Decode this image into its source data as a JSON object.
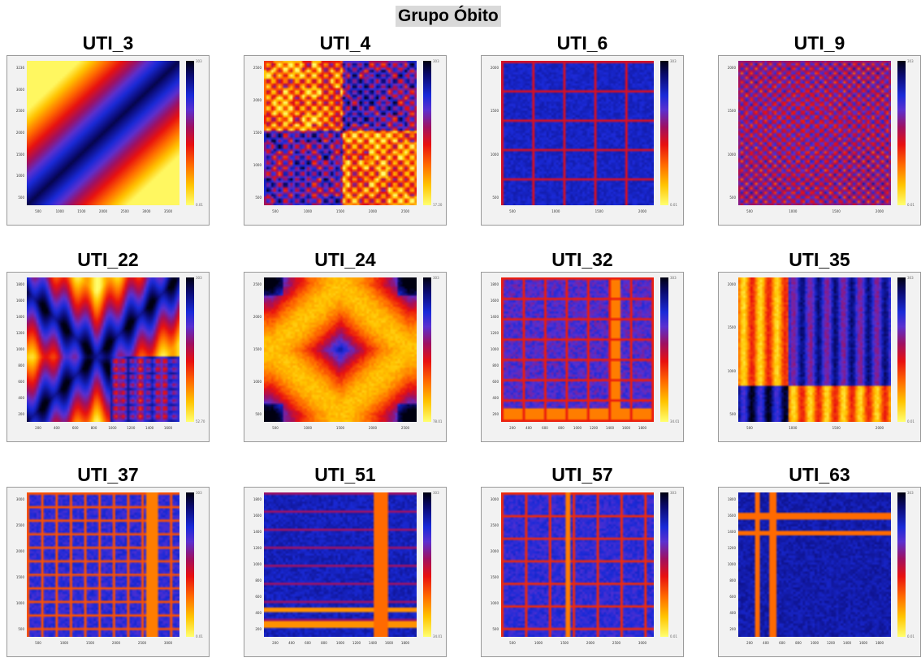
{
  "header": {
    "title": "Grupo Óbito"
  },
  "colors": {
    "low": "#ffff70",
    "mid": "#e81010",
    "high": "#1a2ad8",
    "max": "#000010"
  },
  "chart_data": [
    {
      "type": "heatmap",
      "title": "UTI_3",
      "colorbar": {
        "max": "303",
        "min": "0.01"
      },
      "yticks": [
        "3236",
        "3000",
        "2500",
        "2000",
        "1500",
        "1000",
        "500"
      ],
      "xticks": [
        "500",
        "1000",
        "1500",
        "2000",
        "2500",
        "3000",
        "3500"
      ]
    },
    {
      "type": "heatmap",
      "title": "UTI_4",
      "colorbar": {
        "max": "303",
        "min": "17.20"
      },
      "yticks": [
        "2500",
        "2000",
        "1500",
        "1000",
        "500"
      ],
      "xticks": [
        "500",
        "1000",
        "1500",
        "2000",
        "2500"
      ]
    },
    {
      "type": "heatmap",
      "title": "UTI_6",
      "colorbar": {
        "max": "303",
        "min": "0.01"
      },
      "yticks": [
        "2000",
        "1500",
        "1000",
        "500"
      ],
      "xticks": [
        "500",
        "1000",
        "1500",
        "2000"
      ]
    },
    {
      "type": "heatmap",
      "title": "UTI_9",
      "colorbar": {
        "max": "303",
        "min": "0.01"
      },
      "yticks": [
        "2000",
        "1500",
        "1000",
        "500"
      ],
      "xticks": [
        "500",
        "1000",
        "1500",
        "2000"
      ]
    },
    {
      "type": "heatmap",
      "title": "UTI_22",
      "colorbar": {
        "max": "303",
        "min": "52.70"
      },
      "yticks": [
        "1800",
        "1600",
        "1400",
        "1200",
        "1000",
        "800",
        "600",
        "400",
        "200"
      ],
      "xticks": [
        "200",
        "400",
        "600",
        "800",
        "1000",
        "1200",
        "1400",
        "1600"
      ]
    },
    {
      "type": "heatmap",
      "title": "UTI_24",
      "colorbar": {
        "max": "303",
        "min": "78.01"
      },
      "yticks": [
        "2500",
        "2000",
        "1500",
        "1000",
        "500"
      ],
      "xticks": [
        "500",
        "1000",
        "1500",
        "2000",
        "2500"
      ]
    },
    {
      "type": "heatmap",
      "title": "UTI_32",
      "colorbar": {
        "max": "303",
        "min": "34.01"
      },
      "yticks": [
        "1800",
        "1600",
        "1400",
        "1200",
        "1000",
        "800",
        "600",
        "400",
        "200"
      ],
      "xticks": [
        "200",
        "400",
        "600",
        "800",
        "1000",
        "1200",
        "1400",
        "1600",
        "1800"
      ]
    },
    {
      "type": "heatmap",
      "title": "UTI_35",
      "colorbar": {
        "max": "303",
        "min": "0.01"
      },
      "yticks": [
        "2000",
        "1500",
        "1000",
        "500"
      ],
      "xticks": [
        "500",
        "1000",
        "1500",
        "2000"
      ]
    },
    {
      "type": "heatmap",
      "title": "UTI_37",
      "colorbar": {
        "max": "303",
        "min": "0.01"
      },
      "yticks": [
        "3000",
        "2500",
        "2000",
        "1500",
        "1000",
        "500"
      ],
      "xticks": [
        "500",
        "1000",
        "1500",
        "2000",
        "2500",
        "3000"
      ]
    },
    {
      "type": "heatmap",
      "title": "UTI_51",
      "colorbar": {
        "max": "303",
        "min": "34.01"
      },
      "yticks": [
        "1800",
        "1600",
        "1400",
        "1200",
        "1000",
        "800",
        "600",
        "400",
        "200"
      ],
      "xticks": [
        "200",
        "400",
        "600",
        "800",
        "1000",
        "1200",
        "1400",
        "1600",
        "1800"
      ]
    },
    {
      "type": "heatmap",
      "title": "UTI_57",
      "colorbar": {
        "max": "303",
        "min": "0.01"
      },
      "yticks": [
        "3000",
        "2500",
        "2000",
        "1500",
        "1000",
        "500"
      ],
      "xticks": [
        "500",
        "1000",
        "1500",
        "2000",
        "2500",
        "3000"
      ]
    },
    {
      "type": "heatmap",
      "title": "UTI_63",
      "colorbar": {
        "max": "303",
        "min": "0.01"
      },
      "yticks": [
        "1800",
        "1600",
        "1400",
        "1200",
        "1000",
        "800",
        "600",
        "400",
        "200"
      ],
      "xticks": [
        "200",
        "400",
        "600",
        "800",
        "1000",
        "1200",
        "1400",
        "1600",
        "1800"
      ]
    }
  ]
}
